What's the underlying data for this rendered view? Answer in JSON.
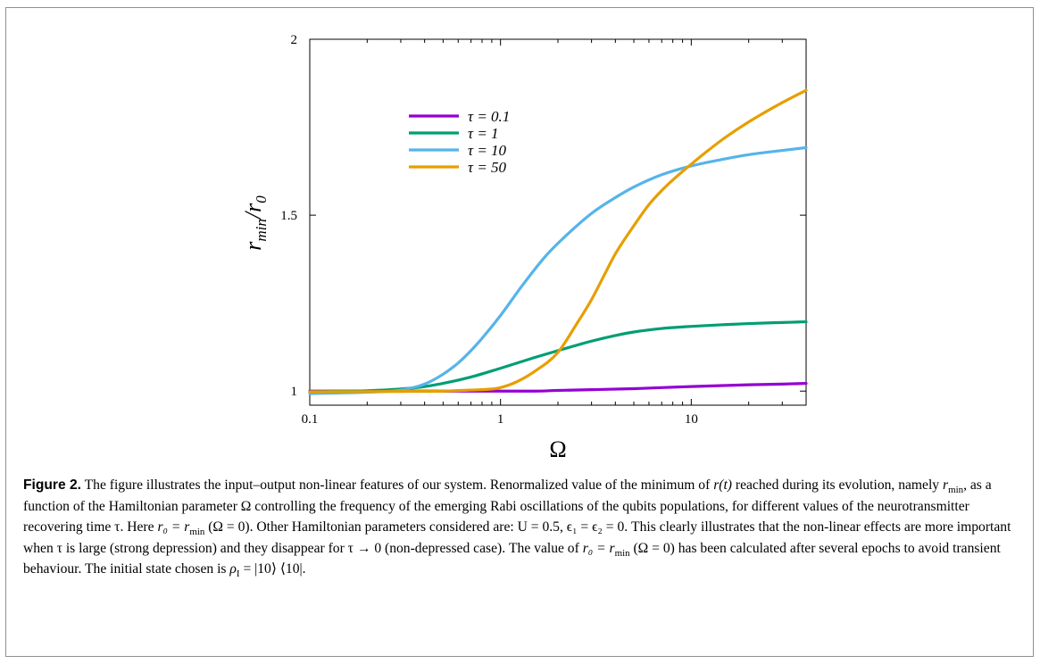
{
  "figure_label": "Figure 2.",
  "caption": {
    "s1": "The figure illustrates the input–output non-linear features of our system. Renormalized value of the minimum of ",
    "s2": " reached during its evolution, namely ",
    "s3": ", as a function of the Hamiltonian parameter Ω controlling the frequency of the emerging Rabi oscillations of the qubits populations, for different values of the neurotransmitter recovering time τ. Here ",
    "s4": ". Other Hamiltonian parameters considered are: U = 0.5, ϵ₁ = ϵ₂ = 0. This clearly illustrates that the non-linear effects are more important when τ is large (strong depression) and they disappear for τ → 0 (non-depressed case). The value of ",
    "s5": " has been calculated after several epochs to avoid transient behaviour. The initial state chosen is ",
    "rt": "r(t)",
    "rmin": "r",
    "rmin_sub": "min",
    "r0_def": "r₀ = r",
    "r0_def_tail": " (Ω = 0)",
    "rho": "ρ",
    "rho_sub": "I",
    "rho_tail": " = |10⟩ ⟨10|."
  },
  "chart_data": {
    "type": "line",
    "xlabel": "Ω",
    "ylabel": "r_min/r_0",
    "x_scale": "log",
    "xlim": [
      0.1,
      40
    ],
    "ylim": [
      0.96,
      2.0
    ],
    "x_ticks": [
      {
        "value": 0.1,
        "label": "0.1"
      },
      {
        "value": 1,
        "label": "1"
      },
      {
        "value": 10,
        "label": "10"
      }
    ],
    "y_ticks": [
      {
        "value": 1,
        "label": "1"
      },
      {
        "value": 1.5,
        "label": "1.5"
      },
      {
        "value": 2,
        "label": "2"
      }
    ],
    "legend_position": "upper-left",
    "series": [
      {
        "name": "τ = 0.1",
        "color": "#9400d3",
        "x": [
          0.1,
          0.2,
          0.3,
          0.5,
          0.7,
          1,
          1.5,
          2,
          3,
          5,
          7,
          10,
          15,
          20,
          30,
          40
        ],
        "y": [
          1.0,
          1.0,
          1.0,
          1.0,
          1.0,
          1.0,
          1.0,
          1.002,
          1.004,
          1.007,
          1.01,
          1.013,
          1.016,
          1.018,
          1.02,
          1.022
        ]
      },
      {
        "name": "τ = 1",
        "color": "#009e73",
        "x": [
          0.1,
          0.2,
          0.3,
          0.4,
          0.5,
          0.7,
          1,
          1.5,
          2,
          3,
          4,
          5,
          7,
          10,
          15,
          20,
          30,
          40
        ],
        "y": [
          0.998,
          1.001,
          1.006,
          1.013,
          1.022,
          1.04,
          1.065,
          1.095,
          1.115,
          1.142,
          1.158,
          1.168,
          1.178,
          1.184,
          1.189,
          1.192,
          1.195,
          1.197
        ]
      },
      {
        "name": "τ = 10",
        "color": "#56b4e9",
        "x": [
          0.1,
          0.2,
          0.3,
          0.4,
          0.5,
          0.6,
          0.7,
          0.8,
          1,
          1.3,
          1.7,
          2,
          3,
          4,
          5,
          7,
          10,
          15,
          20,
          30,
          40
        ],
        "y": [
          0.993,
          0.997,
          1.003,
          1.02,
          1.048,
          1.08,
          1.115,
          1.15,
          1.215,
          1.3,
          1.38,
          1.42,
          1.505,
          1.55,
          1.58,
          1.615,
          1.64,
          1.66,
          1.672,
          1.684,
          1.692
        ]
      },
      {
        "name": "τ = 50",
        "color": "#e69f00",
        "x": [
          0.1,
          0.3,
          0.5,
          0.7,
          0.9,
          1,
          1.2,
          1.5,
          2,
          2.5,
          3,
          3.5,
          4,
          5,
          6,
          7,
          8,
          10,
          12,
          15,
          20,
          30,
          40
        ],
        "y": [
          0.998,
          0.999,
          1.0,
          1.003,
          1.006,
          1.01,
          1.025,
          1.055,
          1.11,
          1.19,
          1.26,
          1.33,
          1.39,
          1.47,
          1.53,
          1.57,
          1.6,
          1.645,
          1.68,
          1.72,
          1.765,
          1.82,
          1.855
        ]
      }
    ]
  }
}
